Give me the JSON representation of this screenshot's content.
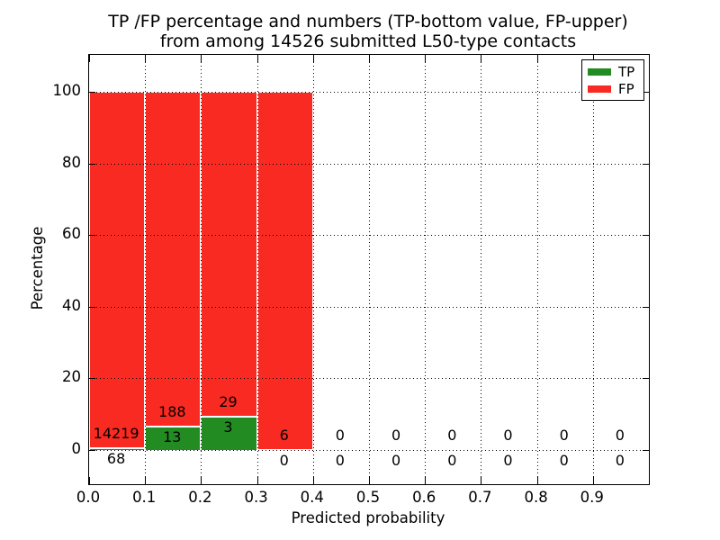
{
  "chart_data": {
    "type": "bar",
    "stacked_percentage": true,
    "title_line1": "TP /FP percentage and numbers (TP-bottom value, FP-upper)",
    "title_line2": "from among 14526 submitted L50-type contacts",
    "xlabel": "Predicted probability",
    "ylabel": "Percentage",
    "x_tick_labels": [
      "0.0",
      "0.1",
      "0.2",
      "0.3",
      "0.4",
      "0.5",
      "0.6",
      "0.7",
      "0.8",
      "0.9"
    ],
    "y_tick_labels": [
      "0",
      "20",
      "40",
      "60",
      "80",
      "100"
    ],
    "y_tick_values": [
      0,
      20,
      40,
      60,
      80,
      100
    ],
    "xlim": [
      0.0,
      1.0
    ],
    "ylim": [
      -10,
      110
    ],
    "grid": "dotted",
    "legend": {
      "position": "upper right",
      "items": [
        {
          "label": "TP",
          "color": "#228b22"
        },
        {
          "label": "FP",
          "color": "#f92a21"
        }
      ]
    },
    "colors": {
      "tp": "#228b22",
      "fp": "#f92a21",
      "bar_edge": "#ffffff",
      "text": "#000000",
      "background": "#ffffff"
    },
    "bins": [
      {
        "x0": 0.0,
        "x1": 0.1,
        "tp": 68,
        "fp": 14219
      },
      {
        "x0": 0.1,
        "x1": 0.2,
        "tp": 13,
        "fp": 188
      },
      {
        "x0": 0.2,
        "x1": 0.3,
        "tp": 3,
        "fp": 29
      },
      {
        "x0": 0.3,
        "x1": 0.4,
        "tp": 0,
        "fp": 6
      },
      {
        "x0": 0.4,
        "x1": 0.5,
        "tp": 0,
        "fp": 0
      },
      {
        "x0": 0.5,
        "x1": 0.6,
        "tp": 0,
        "fp": 0
      },
      {
        "x0": 0.6,
        "x1": 0.7,
        "tp": 0,
        "fp": 0
      },
      {
        "x0": 0.7,
        "x1": 0.8,
        "tp": 0,
        "fp": 0
      },
      {
        "x0": 0.8,
        "x1": 0.9,
        "tp": 0,
        "fp": 0
      },
      {
        "x0": 0.9,
        "x1": 1.0,
        "tp": 0,
        "fp": 0
      }
    ]
  }
}
